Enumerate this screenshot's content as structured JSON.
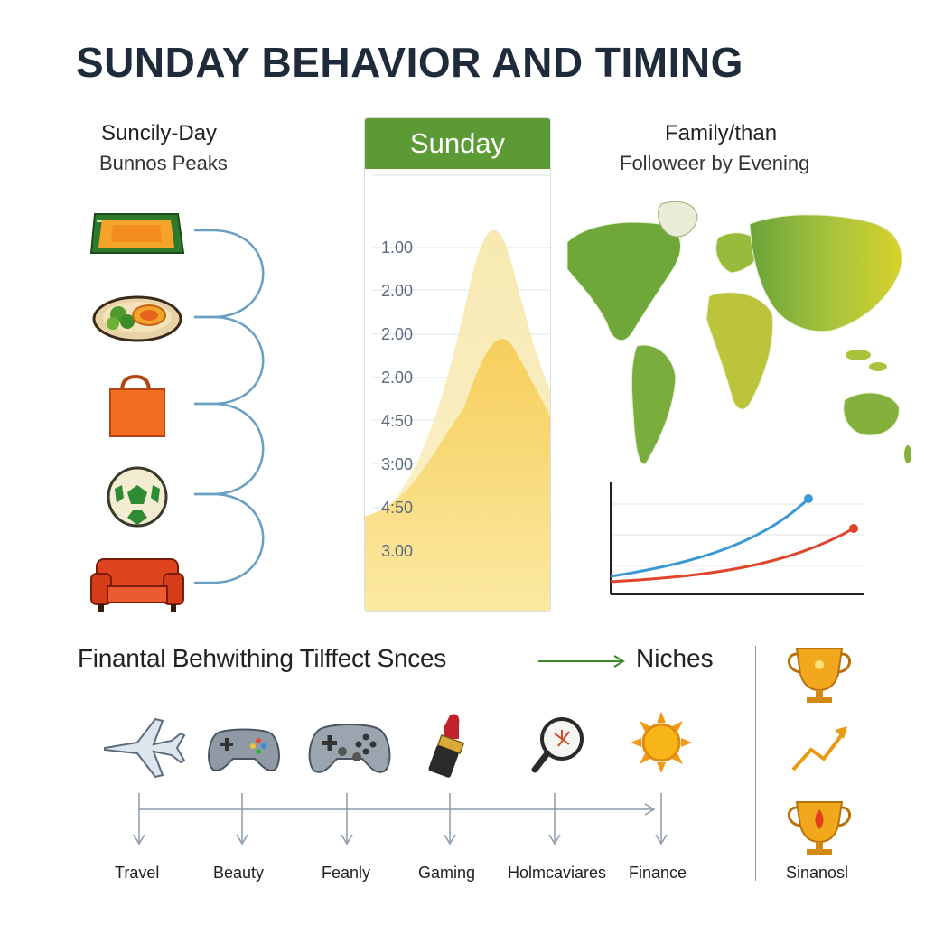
{
  "title": "SUNDAY BEHAVIOR AND TIMING",
  "left_panel": {
    "line1": "Suncily-Day",
    "line2": "Bunnos Peaks",
    "icons": [
      "rug-icon",
      "food-plate-icon",
      "shopping-bag-icon",
      "soccer-ball-icon",
      "sofa-icon"
    ]
  },
  "center_panel": {
    "header": "Sunday",
    "y_ticks": [
      "1.00",
      "2.00",
      "2.00",
      "2.00",
      "4:50",
      "3:00",
      "4:50",
      "3.00"
    ]
  },
  "right_panel": {
    "line1": "Family/than",
    "line2": "Followeer by Evening",
    "colors": {
      "blue_line": "#3a98d4",
      "red_line": "#e0442a"
    }
  },
  "bottom": {
    "heading": "Finantal Behwithing Tilffect Snces",
    "niches": "Niches",
    "categories": [
      {
        "label": "Travel",
        "icon": "airplane-icon"
      },
      {
        "label": "Beauty",
        "icon": "gamepad-icon"
      },
      {
        "label": "Feanly",
        "icon": "gamepad-icon"
      },
      {
        "label": "Gaming",
        "icon": "lipstick-icon"
      },
      {
        "label": "Holmcaviares",
        "icon": "magnifier-icon"
      },
      {
        "label": "Finance",
        "icon": "sun-icon"
      }
    ],
    "side_label": "Sinanosl",
    "side_icons": [
      "trophy-icon",
      "growth-arrow-icon",
      "trophy-icon"
    ]
  }
}
